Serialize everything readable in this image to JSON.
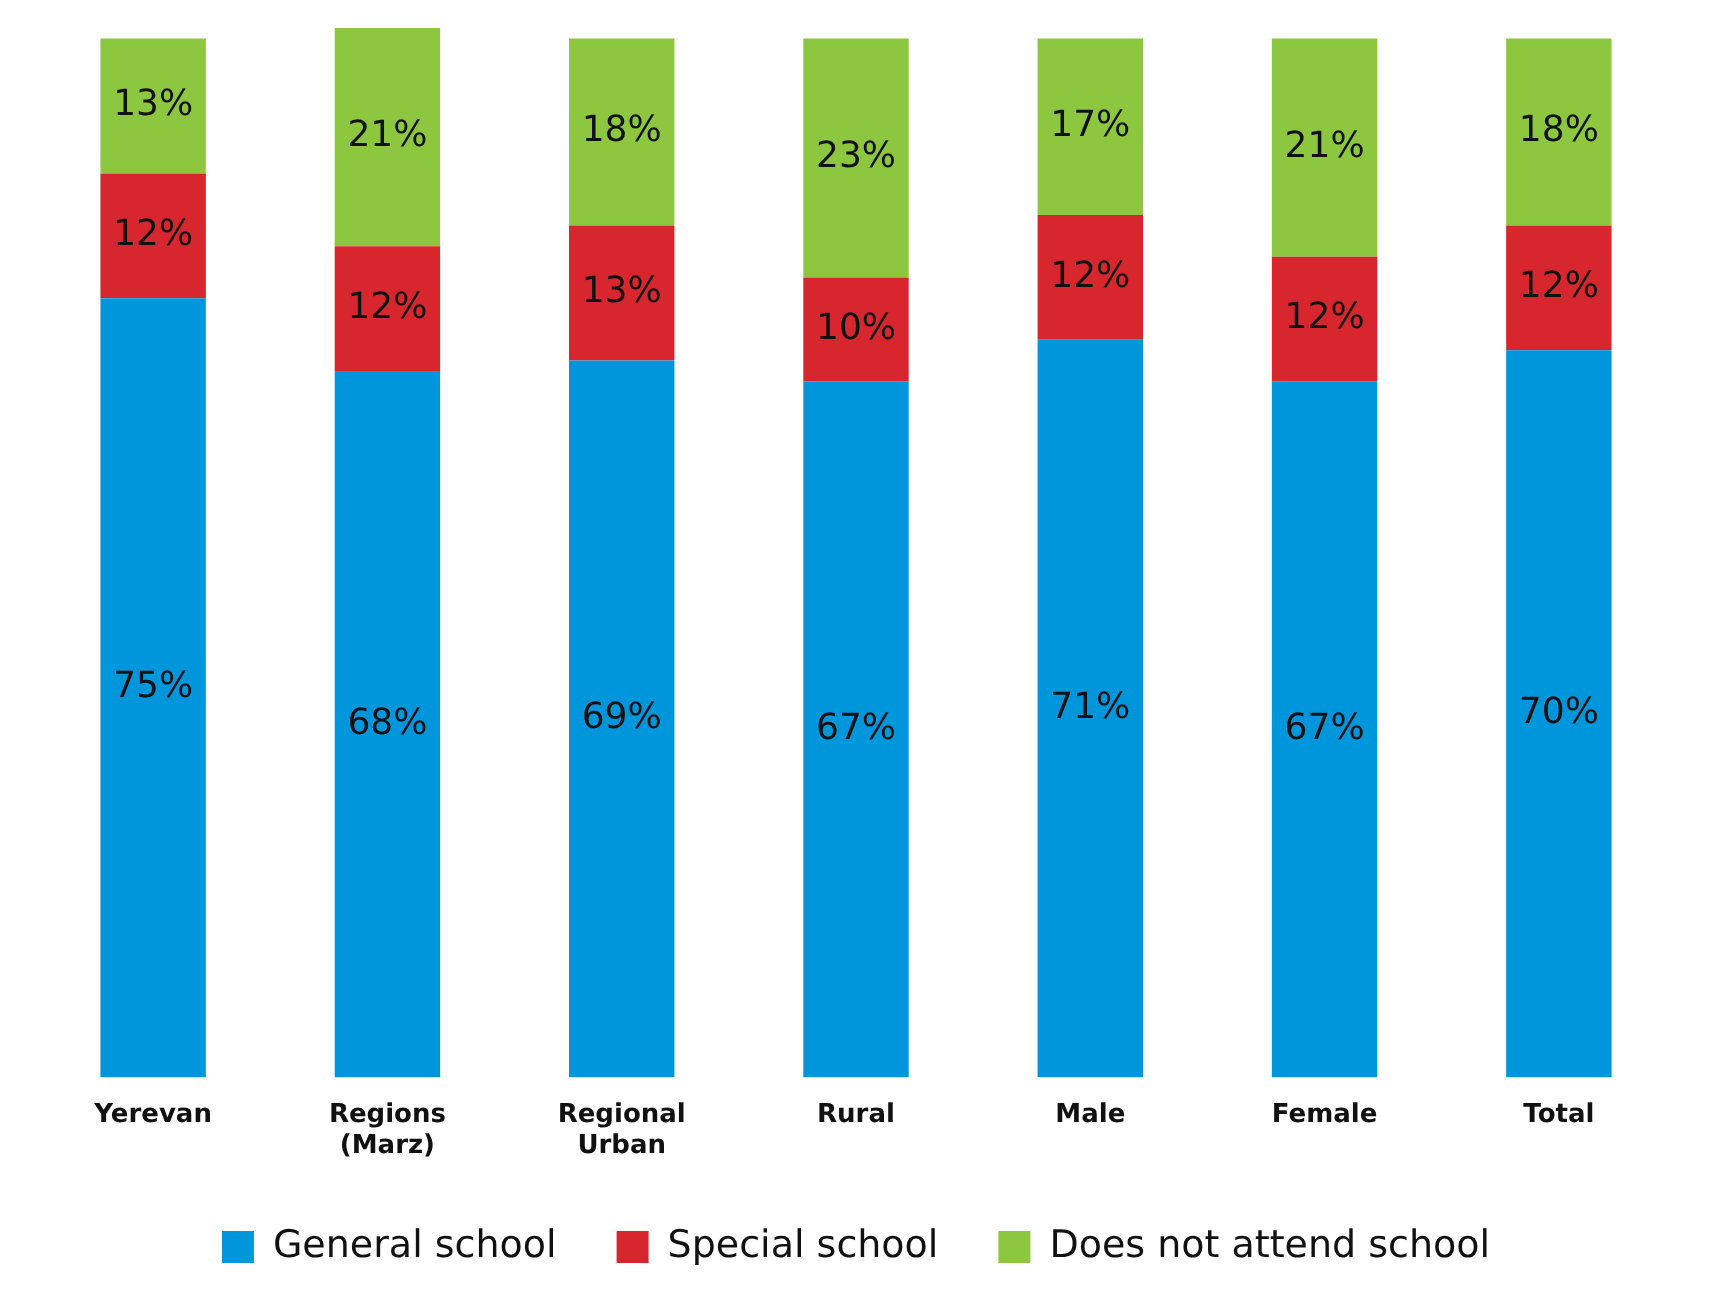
{
  "chart_data": {
    "type": "bar",
    "stacked": true,
    "legend": "bottom",
    "grid": false,
    "categories": [
      "Yerevan",
      "Regions (Marz)",
      "Regional Urban",
      "Rural",
      "Male",
      "Female",
      "Total"
    ],
    "series": [
      {
        "name": "General school",
        "color": "#0096dc",
        "values": [
          75,
          68,
          69,
          67,
          71,
          67,
          70
        ],
        "value_labels": [
          "75%",
          "68%",
          "69%",
          "67%",
          "71%",
          "67%",
          "70%"
        ]
      },
      {
        "name": "Special school",
        "color": "#d7262e",
        "values": [
          12,
          12,
          13,
          10,
          12,
          12,
          12
        ],
        "value_labels": [
          "12%",
          "12%",
          "13%",
          "10%",
          "12%",
          "12%",
          "12%"
        ]
      },
      {
        "name": "Does not attend school",
        "color": "#8dc63f",
        "values": [
          13,
          21,
          18,
          23,
          17,
          21,
          18
        ],
        "value_labels": [
          "13%",
          "21%",
          "18%",
          "23%",
          "17%",
          "21%",
          "18%"
        ]
      }
    ]
  }
}
